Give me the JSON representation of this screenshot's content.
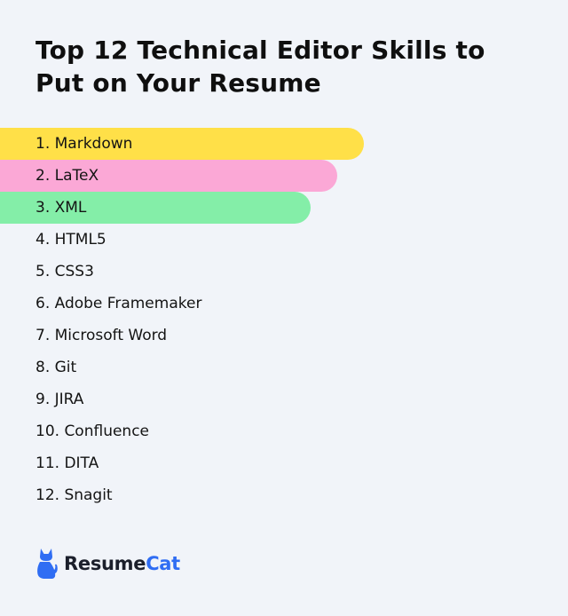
{
  "title": "Top 12 Technical Editor Skills to Put on Your Resume",
  "skills": [
    {
      "label": "1. Markdown",
      "highlight": "#ffe048"
    },
    {
      "label": "2. LaTeX",
      "highlight": "#fba8d6"
    },
    {
      "label": "3. XML",
      "highlight": "#84eea8"
    },
    {
      "label": "4. HTML5"
    },
    {
      "label": "5. CSS3"
    },
    {
      "label": "6. Adobe Framemaker"
    },
    {
      "label": "7. Microsoft Word"
    },
    {
      "label": "8. Git"
    },
    {
      "label": "9. JIRA"
    },
    {
      "label": "10. Confluence"
    },
    {
      "label": "11. DITA"
    },
    {
      "label": "12. Snagit"
    }
  ],
  "brand": {
    "name_part1": "Resume",
    "name_part2": "Cat",
    "icon": "cat-icon",
    "colors": {
      "dark": "#1b1f2b",
      "accent": "#2f6df3"
    }
  }
}
